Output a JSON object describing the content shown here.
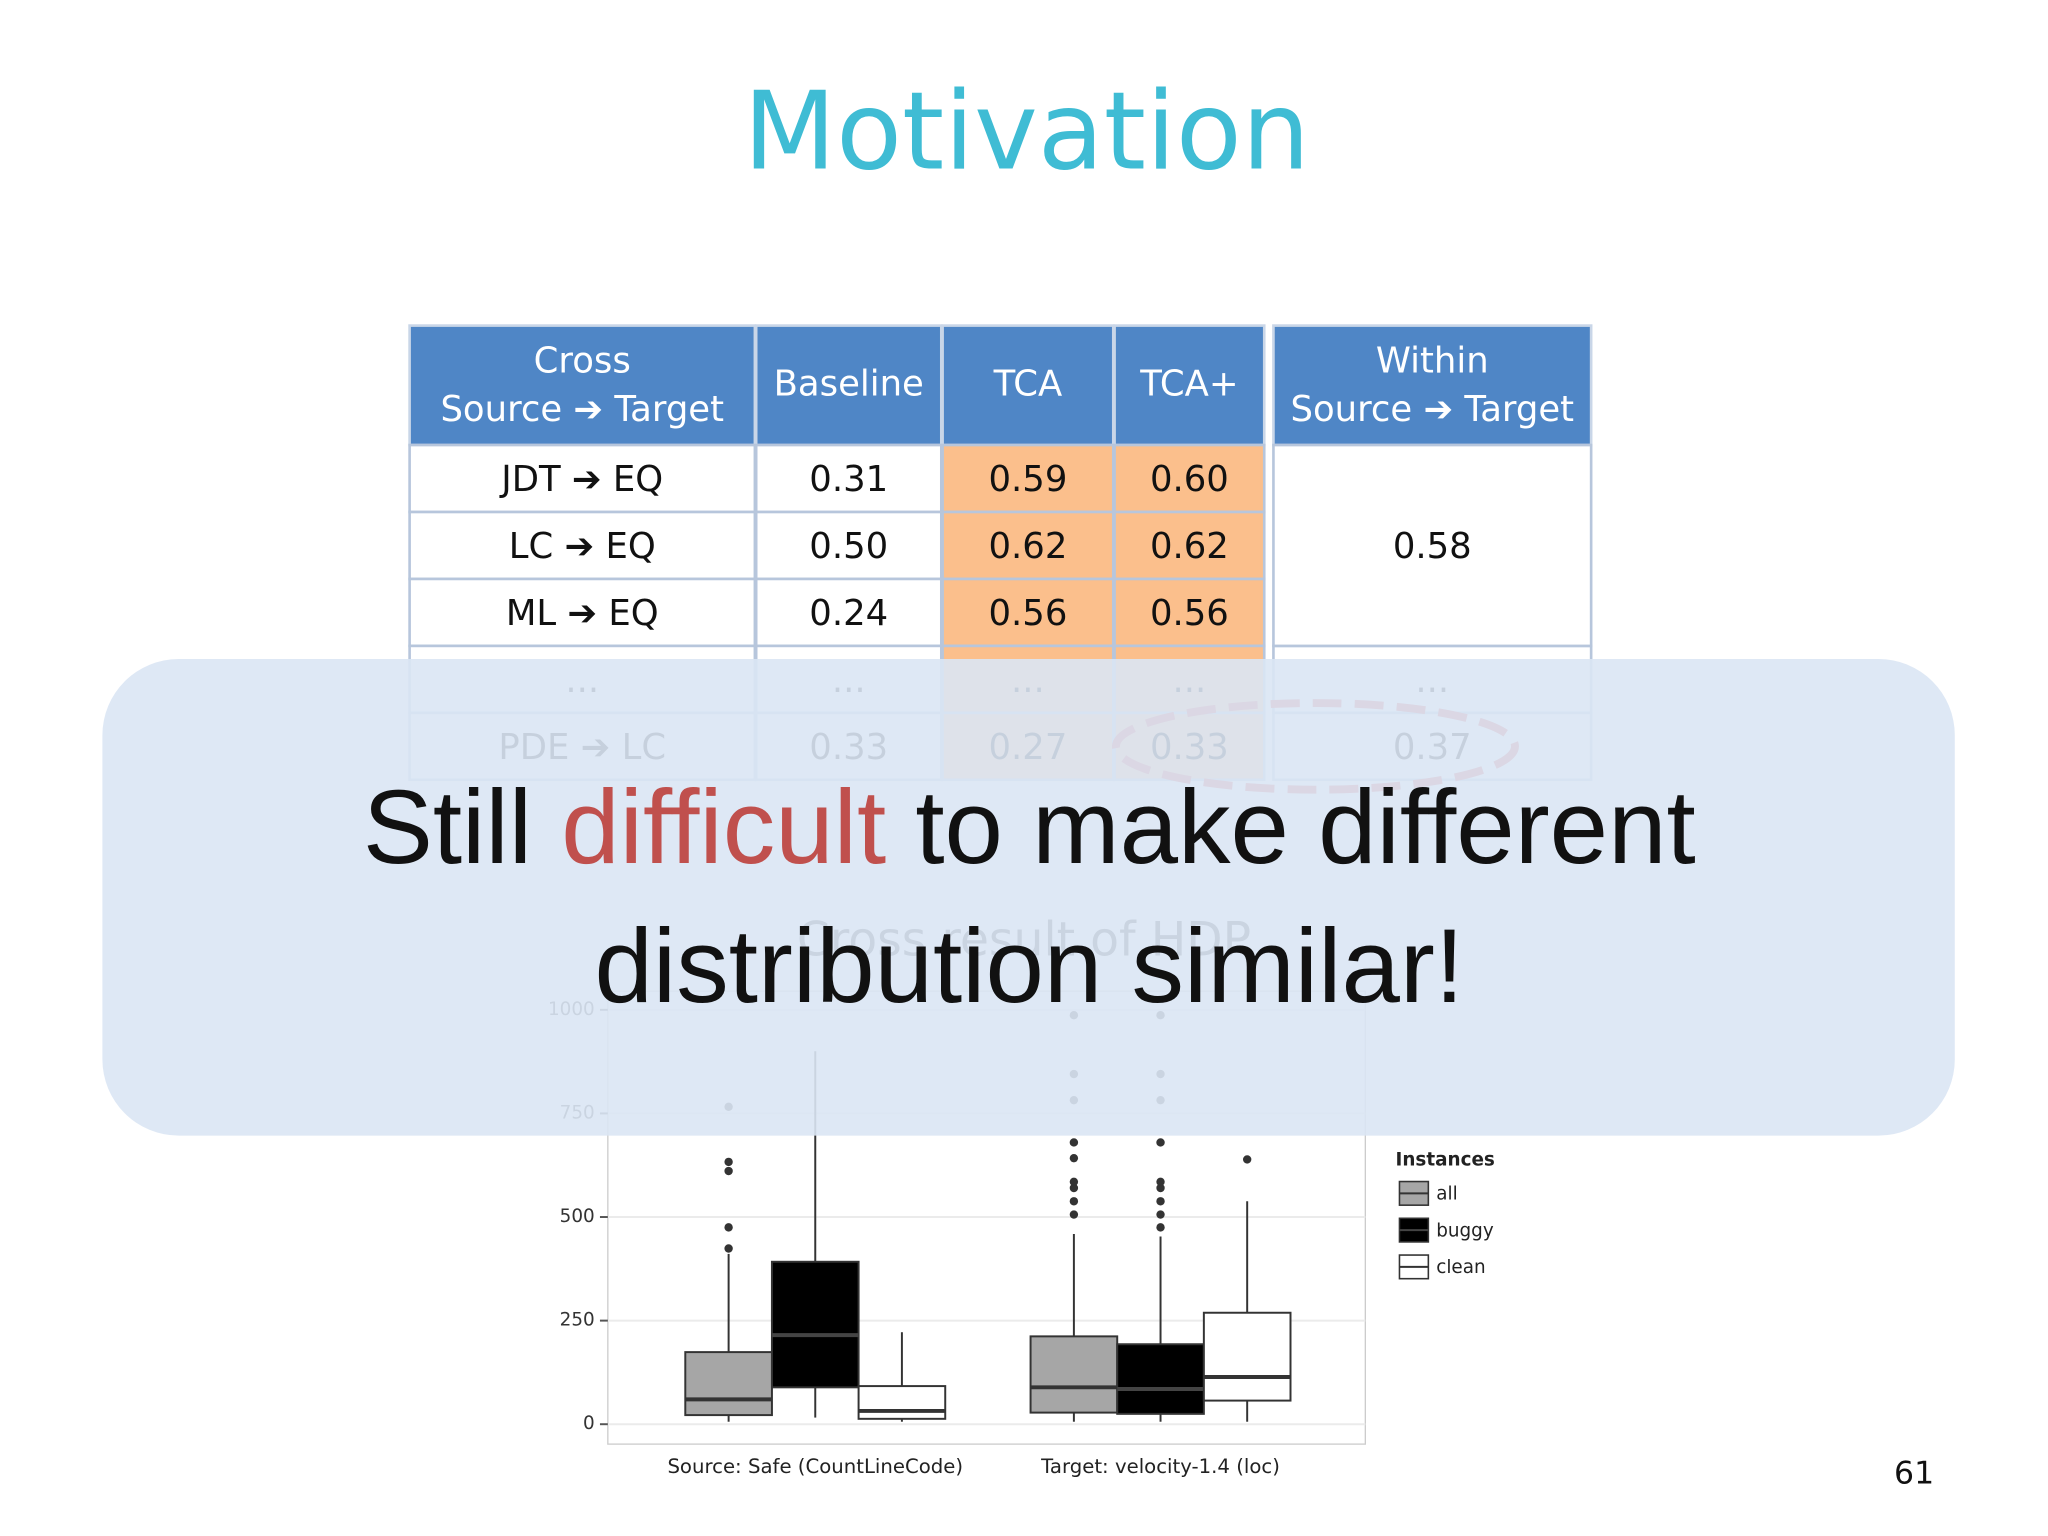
{
  "title": "Motivation",
  "table": {
    "header": [
      [
        "Cross",
        "Source ➔ Target"
      ],
      [
        "Baseline"
      ],
      [
        "TCA"
      ],
      [
        "TCA+"
      ],
      [
        "Within",
        "Source ➔ Target"
      ]
    ],
    "rows": [
      [
        "JDT ➔ EQ",
        "0.31",
        "0.59",
        "0.60"
      ],
      [
        "LC ➔ EQ",
        "0.50",
        "0.62",
        "0.62"
      ],
      [
        "ML ➔ EQ",
        "0.24",
        "0.56",
        "0.56"
      ],
      [
        "...",
        "...",
        "...",
        "...",
        "..."
      ],
      [
        "PDE ➔ LC",
        "0.33",
        "0.27",
        "0.33",
        "0.37"
      ]
    ],
    "within_merged": "0.58"
  },
  "chart_data": {
    "type": "boxplot",
    "title": "Cross result of HDP",
    "categories": [
      "Source: Safe (CountLineCode)",
      "Target: velocity-1.4 (loc)"
    ],
    "legend_title": "Instances",
    "ylim": [
      -48,
      1045
    ],
    "yticks": [
      0,
      250,
      500,
      750,
      1000
    ],
    "grid": true,
    "series": [
      {
        "name": "all",
        "color": "#a6a6a6",
        "boxes": [
          {
            "low": 6,
            "q1": 22,
            "median": 60,
            "q3": 174,
            "high": 411,
            "outliers": [
              424,
              475,
              611,
              633,
              766
            ]
          },
          {
            "low": 6,
            "q1": 28,
            "median": 89,
            "q3": 212,
            "high": 459,
            "outliers": [
              506,
              538,
              570,
              585,
              642,
              680,
              782,
              845,
              987
            ]
          }
        ]
      },
      {
        "name": "buggy",
        "color": "#000000",
        "boxes": [
          {
            "low": 16,
            "q1": 89,
            "median": 215,
            "q3": 392,
            "high": 900,
            "outliers": []
          },
          {
            "low": 6,
            "q1": 25,
            "median": 85,
            "q3": 193,
            "high": 453,
            "outliers": [
              475,
              506,
              538,
              570,
              585,
              680,
              782,
              845,
              987
            ]
          }
        ]
      },
      {
        "name": "clean",
        "color": "#ffffff",
        "boxes": [
          {
            "low": 6,
            "q1": 13,
            "median": 32,
            "q3": 92,
            "high": 222,
            "outliers": []
          },
          {
            "low": 6,
            "q1": 57,
            "median": 114,
            "q3": 269,
            "high": 538,
            "outliers": [
              639
            ]
          }
        ]
      }
    ]
  },
  "overlay": {
    "line1": [
      "Still",
      "difficult",
      "to make different"
    ],
    "line2": "distribution similar!"
  },
  "page_number": "61"
}
